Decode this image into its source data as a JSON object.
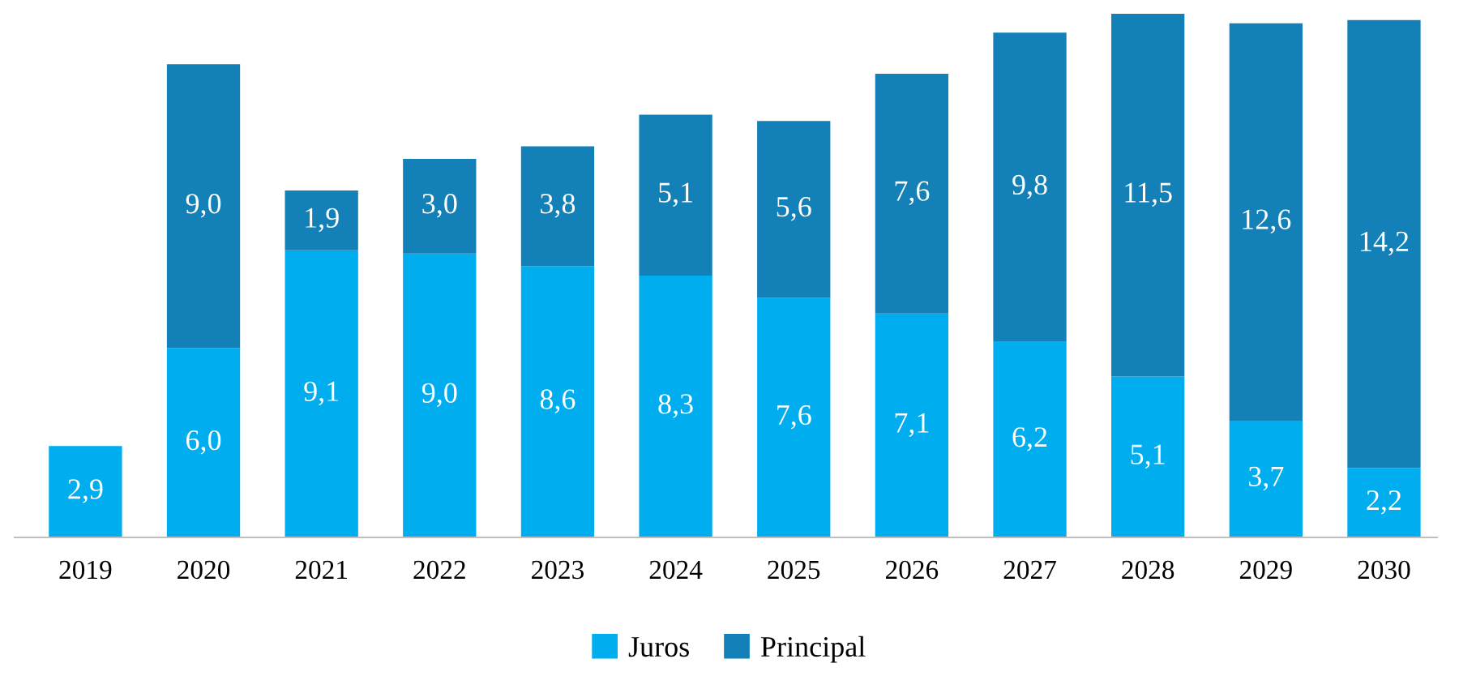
{
  "chart_data": {
    "type": "bar",
    "stacked": true,
    "legend": "bottom",
    "grid": false,
    "categories": [
      "2019",
      "2020",
      "2021",
      "2022",
      "2023",
      "2024",
      "2025",
      "2026",
      "2027",
      "2028",
      "2029",
      "2030"
    ],
    "series": [
      {
        "name": "Juros",
        "color": "#00adef",
        "values": [
          2.9,
          6.0,
          9.1,
          9.0,
          8.6,
          8.3,
          7.6,
          7.1,
          6.2,
          5.1,
          3.7,
          2.2
        ],
        "value_labels": [
          "2,9",
          "6,0",
          "9,1",
          "9,0",
          "8,6",
          "8,3",
          "7,6",
          "7,1",
          "6,2",
          "5,1",
          "3,7",
          "2,2"
        ]
      },
      {
        "name": "Principal",
        "color": "#1380b8",
        "values": [
          null,
          9.0,
          1.9,
          3.0,
          3.8,
          5.1,
          5.6,
          7.6,
          9.8,
          11.5,
          12.6,
          14.2
        ],
        "value_labels": [
          null,
          "9,0",
          "1,9",
          "3,0",
          "3,8",
          "5,1",
          "5,6",
          "7,6",
          "9,8",
          "11,5",
          "12,6",
          "14,2"
        ]
      }
    ]
  }
}
